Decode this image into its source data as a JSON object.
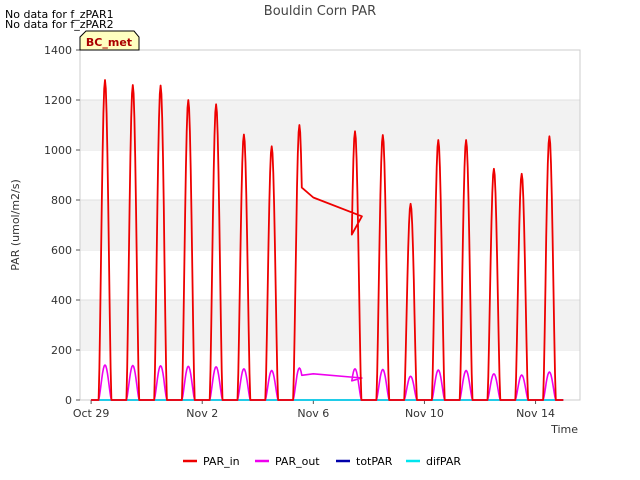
{
  "notes": [
    "No data for f_zPAR1",
    "No data for f_zPAR2"
  ],
  "chart_data": {
    "type": "line",
    "title": "Bouldin Corn PAR",
    "xlabel": "Time",
    "ylabel": "PAR (umol/m2/s)",
    "badge": "BC_met",
    "xlim": [
      -0.4,
      17.6
    ],
    "ylim": [
      0,
      1400
    ],
    "x_ticks": [
      {
        "value": 0,
        "label": "Oct 29"
      },
      {
        "value": 4,
        "label": "Nov 2"
      },
      {
        "value": 8,
        "label": "Nov 6"
      },
      {
        "value": 12,
        "label": "Nov 10"
      },
      {
        "value": 16,
        "label": "Nov 14"
      }
    ],
    "y_ticks": [
      0,
      200,
      400,
      600,
      800,
      1000,
      1200,
      1400
    ],
    "grid": "horizontal bands",
    "legend_position": "bottom",
    "days": [
      {
        "start": 0.0,
        "center": 0.5,
        "end": 1.0,
        "par_in_peak": 1280,
        "par_out_peak": 140
      },
      {
        "start": 1.0,
        "center": 1.5,
        "end": 2.0,
        "par_in_peak": 1260,
        "par_out_peak": 138
      },
      {
        "start": 2.0,
        "center": 2.5,
        "end": 3.0,
        "par_in_peak": 1258,
        "par_out_peak": 137
      },
      {
        "start": 3.0,
        "center": 3.5,
        "end": 4.0,
        "par_in_peak": 1200,
        "par_out_peak": 135
      },
      {
        "start": 4.0,
        "center": 4.5,
        "end": 5.0,
        "par_in_peak": 1183,
        "par_out_peak": 133
      },
      {
        "start": 5.0,
        "center": 5.5,
        "end": 6.0,
        "par_in_peak": 1062,
        "par_out_peak": 125
      },
      {
        "start": 6.0,
        "center": 6.5,
        "end": 7.0,
        "par_in_peak": 1015,
        "par_out_peak": 118
      },
      {
        "start": 7.0,
        "center": 7.5,
        "end": 8.0,
        "par_in_peak": 1100,
        "par_out_peak": 128
      },
      {
        "start": 9.0,
        "center": 9.5,
        "end": 10.0,
        "par_in_peak": 1075,
        "par_out_peak": 125
      },
      {
        "start": 10.0,
        "center": 10.5,
        "end": 11.0,
        "par_in_peak": 1060,
        "par_out_peak": 122
      },
      {
        "start": 11.0,
        "center": 11.5,
        "end": 12.0,
        "par_in_peak": 785,
        "par_out_peak": 95
      },
      {
        "start": 12.0,
        "center": 12.5,
        "end": 13.0,
        "par_in_peak": 1040,
        "par_out_peak": 120
      },
      {
        "start": 13.0,
        "center": 13.5,
        "end": 14.0,
        "par_in_peak": 1040,
        "par_out_peak": 118
      },
      {
        "start": 14.0,
        "center": 14.5,
        "end": 15.0,
        "par_in_peak": 925,
        "par_out_peak": 105
      },
      {
        "start": 15.0,
        "center": 15.5,
        "end": 16.0,
        "par_in_peak": 905,
        "par_out_peak": 100
      },
      {
        "start": 16.0,
        "center": 16.5,
        "end": 17.0,
        "par_in_peak": 1055,
        "par_out_peak": 112
      }
    ],
    "gap_segment": {
      "par_in": [
        [
          8.0,
          810
        ],
        [
          9.75,
          735
        ]
      ],
      "par_out": [
        [
          8.0,
          105
        ],
        [
          9.75,
          88
        ]
      ]
    },
    "series": [
      {
        "name": "PAR_in",
        "color": "#ee0000"
      },
      {
        "name": "PAR_out",
        "color": "#ee00ee"
      },
      {
        "name": "totPAR",
        "color": "#0000aa"
      },
      {
        "name": "difPAR",
        "color": "#00e5ee"
      }
    ],
    "totPAR_value": 0,
    "difPAR_value": 0
  }
}
